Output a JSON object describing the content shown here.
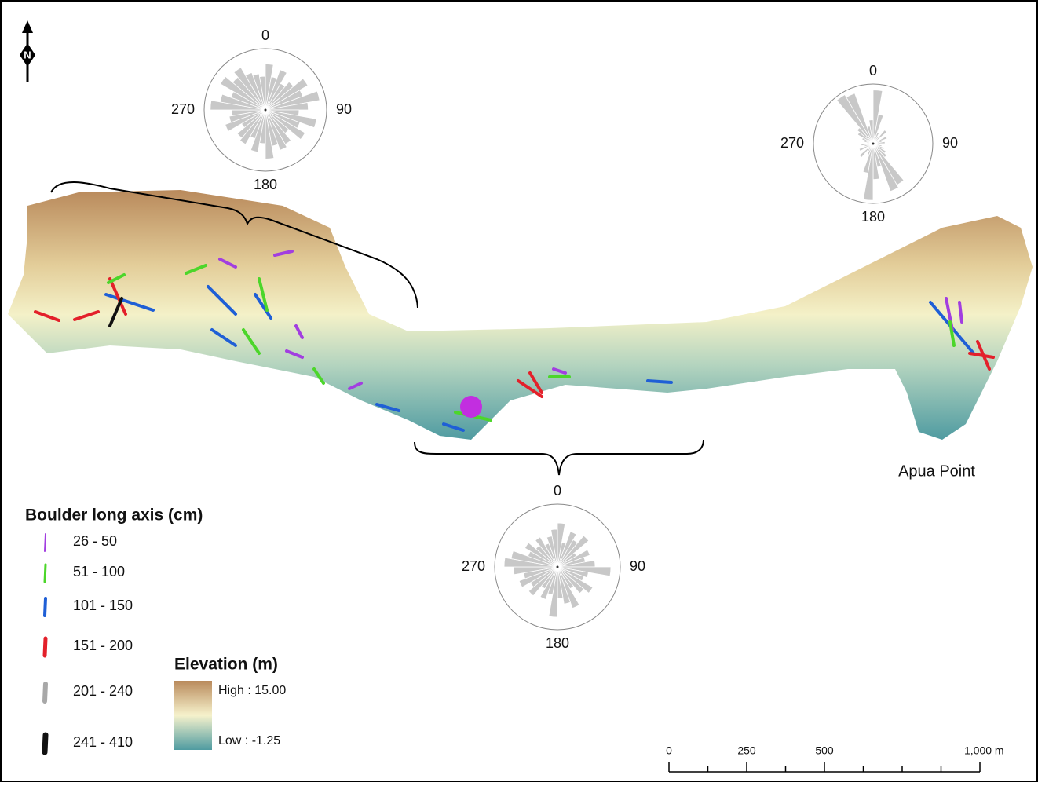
{
  "north_label": "N",
  "place_label": "Apua Point",
  "roses": [
    {
      "labels": [
        "0",
        "90",
        "180",
        "270"
      ],
      "values": [
        0.75,
        0.55,
        0.7,
        0.5,
        0.6,
        0.8,
        0.65,
        0.9,
        0.7,
        0.55,
        0.85,
        0.6,
        0.75,
        0.5,
        0.65,
        0.7,
        0.6,
        0.8,
        0.55,
        0.7,
        0.5,
        0.65,
        0.6,
        0.45,
        0.7,
        0.6,
        0.55,
        0.9,
        0.75,
        0.6,
        0.85,
        0.7,
        0.8,
        0.65,
        0.6,
        0.55
      ]
    },
    {
      "labels": [
        "0",
        "90",
        "180",
        "270"
      ],
      "values": [
        0.9,
        0.5,
        0.2,
        0.15,
        0.3,
        0.1,
        0.25,
        0.15,
        0.2,
        0.1,
        0.15,
        0.2,
        0.25,
        0.3,
        0.8,
        0.85,
        0.4,
        0.6,
        0.95,
        0.5,
        0.2,
        0.15,
        0.3,
        0.1,
        0.25,
        0.15,
        0.2,
        0.1,
        0.15,
        0.2,
        0.3,
        0.35,
        0.95,
        0.9,
        0.3,
        0.4
      ]
    },
    {
      "labels": [
        "0",
        "90",
        "180",
        "270"
      ],
      "values": [
        0.7,
        0.4,
        0.6,
        0.5,
        0.65,
        0.35,
        0.55,
        0.45,
        0.6,
        0.85,
        0.5,
        0.45,
        0.65,
        0.55,
        0.4,
        0.7,
        0.6,
        0.5,
        0.8,
        0.45,
        0.55,
        0.4,
        0.6,
        0.5,
        0.65,
        0.55,
        0.7,
        0.85,
        0.75,
        0.5,
        0.6,
        0.45,
        0.55,
        0.4,
        0.5,
        0.6
      ]
    }
  ],
  "boulder_legend": {
    "title": "Boulder long axis (cm)",
    "items": [
      {
        "label": "26 - 50",
        "color": "#a23ee0"
      },
      {
        "label": "51 - 100",
        "color": "#4cd62a"
      },
      {
        "label": "101 - 150",
        "color": "#1f5fd6"
      },
      {
        "label": "151 - 200",
        "color": "#e3202a"
      },
      {
        "label": "201 - 240",
        "color": "#a8a8a8"
      },
      {
        "label": "241 - 410",
        "color": "#111111"
      }
    ]
  },
  "elevation_legend": {
    "title": "Elevation (m)",
    "high": "High : 15.00",
    "low": "Low : -1.25"
  },
  "scale_bar": {
    "xlim": [
      0,
      1000
    ],
    "ticks": [
      0,
      250,
      500,
      {
        "value": 1000,
        "label": "1,000 m"
      }
    ]
  }
}
